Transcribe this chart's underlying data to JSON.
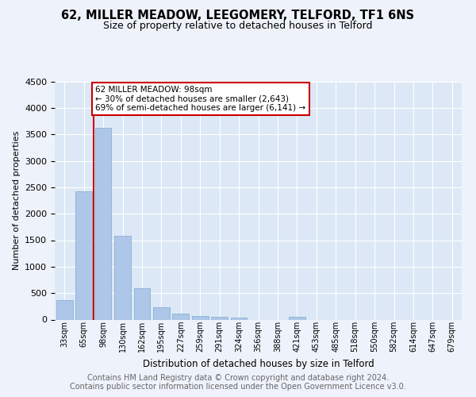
{
  "title1": "62, MILLER MEADOW, LEEGOMERY, TELFORD, TF1 6NS",
  "title2": "Size of property relative to detached houses in Telford",
  "xlabel": "Distribution of detached houses by size in Telford",
  "ylabel": "Number of detached properties",
  "categories": [
    "33sqm",
    "65sqm",
    "98sqm",
    "130sqm",
    "162sqm",
    "195sqm",
    "227sqm",
    "259sqm",
    "291sqm",
    "324sqm",
    "356sqm",
    "388sqm",
    "421sqm",
    "453sqm",
    "485sqm",
    "518sqm",
    "550sqm",
    "582sqm",
    "614sqm",
    "647sqm",
    "679sqm"
  ],
  "values": [
    375,
    2420,
    3620,
    1590,
    600,
    230,
    110,
    65,
    55,
    45,
    0,
    0,
    55,
    0,
    0,
    0,
    0,
    0,
    0,
    0,
    0
  ],
  "bar_color": "#aec6e8",
  "bar_edge_color": "#7aaad0",
  "property_bar_index": 2,
  "annotation_text": "62 MILLER MEADOW: 98sqm\n← 30% of detached houses are smaller (2,643)\n69% of semi-detached houses are larger (6,141) →",
  "annotation_box_color": "#ffffff",
  "annotation_border_color": "#cc0000",
  "red_line_color": "#cc0000",
  "footer_text": "Contains HM Land Registry data © Crown copyright and database right 2024.\nContains public sector information licensed under the Open Government Licence v3.0.",
  "background_color": "#eef2fa",
  "plot_bg_color": "#dce8f5",
  "grid_color": "#ffffff",
  "ylim": [
    0,
    4500
  ],
  "title1_fontsize": 10.5,
  "title2_fontsize": 9,
  "xlabel_fontsize": 8.5,
  "ylabel_fontsize": 8,
  "annotation_fontsize": 7.5,
  "footer_fontsize": 7,
  "tick_fontsize": 7
}
